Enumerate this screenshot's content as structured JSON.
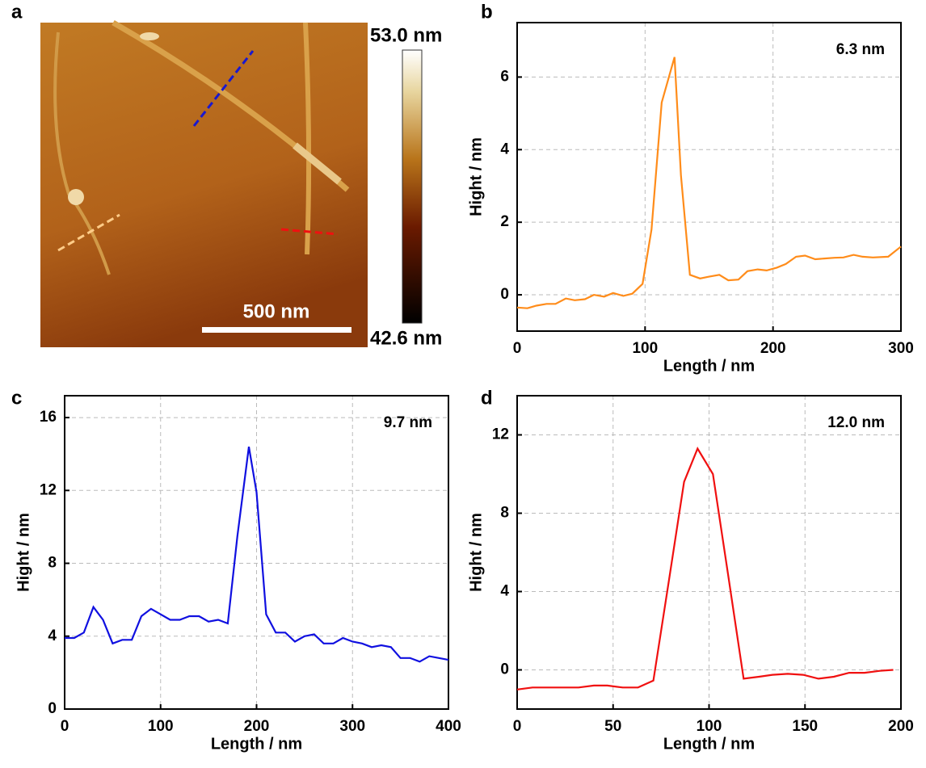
{
  "chart_data": [
    {
      "type": "image",
      "panel": "a",
      "colorbar_max": "53.0 nm",
      "colorbar_min": "42.6 nm",
      "scale_bar": "500 nm"
    },
    {
      "type": "line",
      "panel": "b",
      "annotation": "6.3 nm",
      "x_label": "Length / nm",
      "y_label": "Hight / nm",
      "x": [
        0,
        8,
        15,
        23,
        30,
        38,
        45,
        53,
        60,
        68,
        75,
        83,
        90,
        98,
        105,
        113,
        123,
        128,
        135,
        143,
        150,
        158,
        165,
        173,
        180,
        188,
        195,
        203,
        210,
        218,
        225,
        233,
        240,
        248,
        255,
        263,
        270,
        278,
        290,
        300
      ],
      "series": [
        {
          "color": "#ff8c1a",
          "values": [
            -0.35,
            -0.37,
            -0.3,
            -0.25,
            -0.25,
            -0.1,
            -0.15,
            -0.12,
            0,
            -0.05,
            0.05,
            -0.03,
            0.03,
            0.3,
            1.8,
            5.3,
            6.55,
            3.3,
            0.55,
            0.45,
            0.5,
            0.55,
            0.4,
            0.42,
            0.65,
            0.7,
            0.67,
            0.75,
            0.85,
            1.05,
            1.08,
            0.98,
            1.0,
            1.02,
            1.03,
            1.1,
            1.05,
            1.03,
            1.05,
            1.33
          ]
        }
      ],
      "xlim": [
        0,
        300
      ],
      "ylim": [
        -1,
        7.5
      ],
      "xticks": [
        0,
        100,
        200,
        300
      ],
      "yticks": [
        0,
        2,
        4,
        6
      ],
      "grid": true
    },
    {
      "type": "line",
      "panel": "c",
      "annotation": "9.7 nm",
      "x_label": "Length / nm",
      "y_label": "Hight / nm",
      "x": [
        0,
        10,
        20,
        30,
        40,
        50,
        60,
        70,
        80,
        90,
        100,
        110,
        120,
        130,
        140,
        150,
        160,
        170,
        180,
        192,
        200,
        210,
        220,
        230,
        240,
        250,
        260,
        270,
        280,
        290,
        300,
        310,
        320,
        330,
        340,
        350,
        360,
        370,
        380,
        390,
        400
      ],
      "series": [
        {
          "color": "#1010e0",
          "values": [
            3.9,
            3.9,
            4.2,
            5.6,
            4.9,
            3.6,
            3.8,
            3.8,
            5.1,
            5.5,
            5.2,
            4.9,
            4.9,
            5.1,
            5.1,
            4.8,
            4.9,
            4.7,
            9.5,
            14.4,
            11.9,
            5.2,
            4.2,
            4.2,
            3.7,
            4.0,
            4.1,
            3.6,
            3.6,
            3.9,
            3.7,
            3.6,
            3.4,
            3.5,
            3.4,
            2.8,
            2.8,
            2.6,
            2.9,
            2.8,
            2.7
          ]
        }
      ],
      "xlim": [
        0,
        400
      ],
      "ylim": [
        0,
        17.2
      ],
      "xticks": [
        0,
        100,
        200,
        300,
        400
      ],
      "yticks": [
        0,
        4,
        8,
        12,
        16
      ],
      "grid": true
    },
    {
      "type": "line",
      "panel": "d",
      "annotation": "12.0 nm",
      "x_label": "Length / nm",
      "y_label": "Hight / nm",
      "x": [
        0,
        8,
        16,
        24,
        32,
        40,
        47,
        55,
        63,
        71,
        79,
        87,
        94,
        102,
        110,
        118,
        126,
        133,
        141,
        149,
        157,
        165,
        173,
        181,
        189,
        196
      ],
      "series": [
        {
          "color": "#f01010",
          "values": [
            -1.0,
            -0.9,
            -0.9,
            -0.9,
            -0.9,
            -0.8,
            -0.8,
            -0.9,
            -0.9,
            -0.55,
            4.5,
            9.6,
            11.3,
            10.0,
            4.8,
            -0.45,
            -0.35,
            -0.25,
            -0.2,
            -0.25,
            -0.45,
            -0.35,
            -0.15,
            -0.15,
            -0.05,
            0
          ]
        }
      ],
      "xlim": [
        0,
        200
      ],
      "ylim": [
        -2,
        14
      ],
      "xticks": [
        0,
        50,
        100,
        150,
        200
      ],
      "yticks": [
        0,
        4,
        8,
        12
      ],
      "grid": true
    }
  ]
}
